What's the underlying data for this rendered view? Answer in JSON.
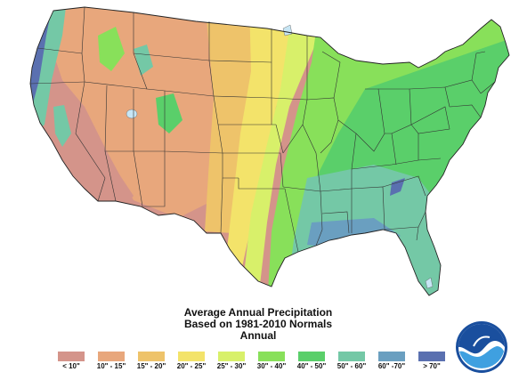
{
  "map": {
    "region": "contiguous-us",
    "variable": "average annual precipitation",
    "states_shown": true
  },
  "title": {
    "line1": "Average Annual Precipitation",
    "line2": "Based on 1981-2010 Normals",
    "line3": "Annual"
  },
  "legend": [
    {
      "label": "< 10\"",
      "color": "#d4948a"
    },
    {
      "label": "10\" - 15\"",
      "color": "#e8a77c"
    },
    {
      "label": "15\" - 20\"",
      "color": "#eec36a"
    },
    {
      "label": "20\" - 25\"",
      "color": "#f3e36a"
    },
    {
      "label": "25\" - 30\"",
      "color": "#d8f06a"
    },
    {
      "label": "30\" - 40\"",
      "color": "#88e05a"
    },
    {
      "label": "40\" - 50\"",
      "color": "#5acf6a"
    },
    {
      "label": "50\" - 60\"",
      "color": "#74c8a6"
    },
    {
      "label": "60\" -70\"",
      "color": "#6a9fc0"
    },
    {
      "label": "> 70\"",
      "color": "#5a70b0"
    }
  ],
  "logo": {
    "name": "noaa-logo",
    "colors": {
      "dark": "#1a4f9e",
      "light": "#3fa0e0"
    }
  }
}
